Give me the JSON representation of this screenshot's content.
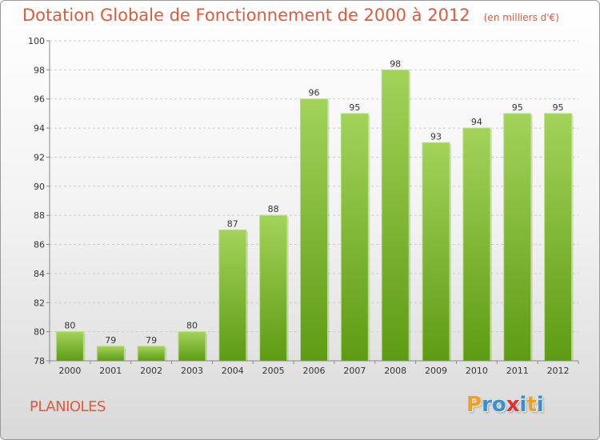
{
  "chart": {
    "title": "Dotation Globale de Fonctionnement de 2000 à 2012",
    "unit": "(en milliers d'€)"
  },
  "location": {
    "name": "PLANIOLES"
  },
  "brand": {
    "letters": [
      "P",
      "r",
      "o",
      "x",
      "i",
      "t",
      "i"
    ],
    "colors": [
      "#f0a020",
      "#3a8fd0",
      "#3a8fd0",
      "#e03030",
      "#3a8fd0",
      "#f0a020",
      "#3a8fd0"
    ]
  },
  "chart_data": {
    "type": "bar",
    "title": "Dotation Globale de Fonctionnement de 2000 à 2012",
    "subtitle": "(en milliers d'€)",
    "categories": [
      "2000",
      "2001",
      "2002",
      "2003",
      "2004",
      "2005",
      "2006",
      "2007",
      "2008",
      "2009",
      "2010",
      "2011",
      "2012"
    ],
    "values": [
      80,
      79,
      79,
      80,
      87,
      88,
      96,
      95,
      98,
      93,
      94,
      95,
      95
    ],
    "ylim": [
      78,
      100
    ],
    "yticks": [
      78,
      80,
      82,
      84,
      86,
      88,
      90,
      92,
      94,
      96,
      98,
      100
    ],
    "grid": true,
    "colors": {
      "bar_top": "#a3d35a",
      "bar_bottom": "#5e9b14",
      "grid": "#cccccc",
      "label": "#333333"
    }
  }
}
